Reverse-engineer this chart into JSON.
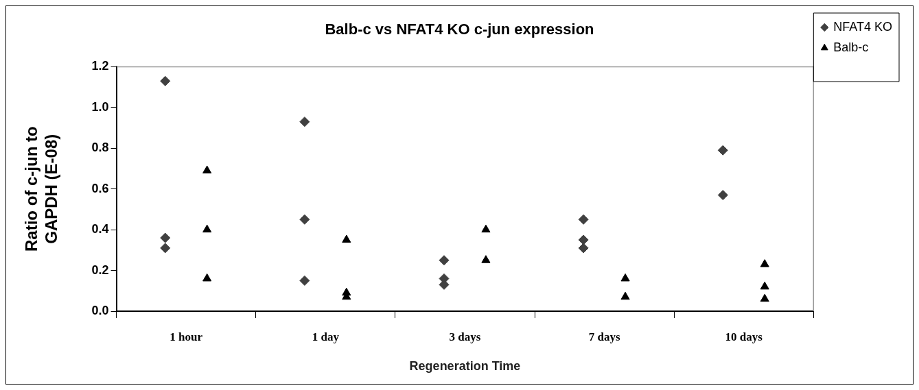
{
  "chart_data": {
    "type": "scatter",
    "title": "Balb-c vs NFAT4 KO c-jun expression",
    "xlabel": "Regeneration Time",
    "ylabel": "Ratio of c-jun to GAPDH (E-08)",
    "categories": [
      "1 hour",
      "1 day",
      "3 days",
      "7 days",
      "10 days"
    ],
    "series": [
      {
        "name": "NFAT4 KO",
        "color": "#404040",
        "marker": "diamond",
        "x": [
          "1 hour",
          "1 hour",
          "1 hour",
          "1 day",
          "1 day",
          "1 day",
          "3 days",
          "3 days",
          "3 days",
          "7 days",
          "7 days",
          "7 days",
          "10 days",
          "10 days"
        ],
        "values": [
          1.13,
          0.36,
          0.31,
          0.93,
          0.45,
          0.15,
          0.25,
          0.16,
          0.13,
          0.45,
          0.35,
          0.31,
          0.79,
          0.57
        ]
      },
      {
        "name": "Balb-c",
        "color": "#000000",
        "marker": "triangle",
        "x": [
          "1 hour",
          "1 hour",
          "1 hour",
          "1 day",
          "1 day",
          "1 day",
          "3 days",
          "3 days",
          "7 days",
          "7 days",
          "10 days",
          "10 days",
          "10 days"
        ],
        "values": [
          0.69,
          0.4,
          0.16,
          0.35,
          0.09,
          0.07,
          0.4,
          0.25,
          0.16,
          0.07,
          0.23,
          0.12,
          0.06
        ]
      }
    ],
    "ylim": [
      0,
      1.2
    ],
    "yticks": [
      {
        "value": 0,
        "label": "0.0"
      },
      0.2,
      0.4,
      0.6,
      0.8,
      {
        "value": 1,
        "label": "1.0"
      },
      1.2
    ],
    "grid": false,
    "legend": "right"
  }
}
